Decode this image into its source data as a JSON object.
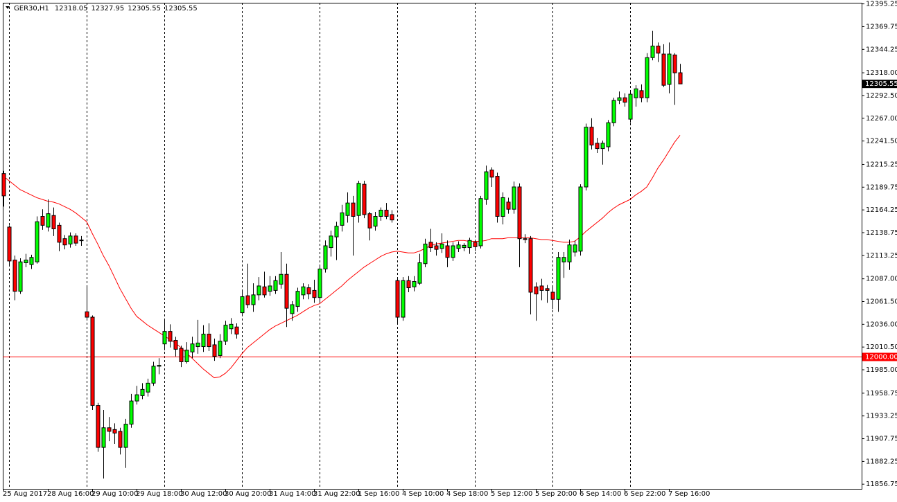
{
  "chart_data": {
    "type": "candlestick",
    "header": {
      "symbol": "GER30,H1",
      "values": [
        12318.05,
        12327.95,
        12305.55,
        12305.55
      ]
    },
    "categories": [
      "25 Aug 2017",
      null,
      null,
      null,
      null,
      null,
      null,
      null,
      "28 Aug 16:00",
      null,
      null,
      null,
      null,
      null,
      null,
      null,
      "29 Aug 10:00",
      null,
      null,
      null,
      null,
      null,
      null,
      null,
      "29 Aug 18:00",
      null,
      null,
      null,
      null,
      null,
      null,
      null,
      "30 Aug 12:00",
      null,
      null,
      null,
      null,
      null,
      null,
      null,
      "30 Aug 20:00",
      null,
      null,
      null,
      null,
      null,
      null,
      null,
      "31 Aug 14:00",
      null,
      null,
      null,
      null,
      null,
      null,
      null,
      "31 Aug 22:00",
      null,
      null,
      null,
      null,
      null,
      null,
      null,
      "1 Sep 16:00",
      null,
      null,
      null,
      null,
      null,
      null,
      null,
      "4 Sep 10:00",
      null,
      null,
      null,
      null,
      null,
      null,
      null,
      "4 Sep 18:00",
      null,
      null,
      null,
      null,
      null,
      null,
      null,
      "5 Sep 12:00",
      null,
      null,
      null,
      null,
      null,
      null,
      null,
      "5 Sep 20:00",
      null,
      null,
      null,
      null,
      null,
      null,
      null,
      "6 Sep 14:00",
      null,
      null,
      null,
      null,
      null,
      null,
      null,
      "6 Sep 22:00",
      null,
      null,
      null,
      null,
      null,
      null,
      null,
      "7 Sep 16:00",
      null,
      null
    ],
    "open": [
      12205,
      12145,
      12108,
      12073,
      12105,
      12103,
      12106,
      12157,
      12145,
      12158,
      12147,
      12132,
      12126,
      12135,
      12130,
      12050,
      12044,
      11945,
      11898,
      11920,
      11918,
      11916,
      11898,
      11924,
      11950,
      11956,
      11960,
      11970,
      11989,
      12014,
      12028,
      12018,
      12009,
      11994,
      12005,
      12011,
      12011,
      12025,
      12013,
      12001,
      12017,
      12031,
      12033,
      12049,
      12068,
      12058,
      12069,
      12078,
      12073,
      12074,
      12081,
      12092,
      12048,
      12056,
      12069,
      12077,
      12074,
      12066,
      12098,
      12122,
      12134,
      12147,
      12158,
      12172,
      12158,
      12193,
      12160,
      12146,
      12157,
      12164,
      12159,
      12085,
      12044,
      12085,
      12078,
      12082,
      12104,
      12128,
      12124,
      12121,
      12124,
      12111,
      12121,
      12122,
      12122,
      12128,
      12124,
      12176,
      12209,
      12202,
      12157,
      12173,
      12165,
      12190,
      12132,
      12132,
      12078,
      12079,
      12076,
      12072,
      12064,
      12106,
      12106,
      12117,
      12118,
      12190,
      12257,
      12239,
      12233,
      12235,
      12262,
      12287,
      12290,
      12266,
      12290,
      12298,
      12290,
      12335,
      12348,
      12339,
      12305,
      12338,
      12318.05
    ],
    "high": [
      12208,
      12147,
      12113,
      12110,
      12115,
      12114,
      12157,
      12165,
      12176,
      12167,
      12150,
      12136,
      12139,
      12138,
      12135,
      12079,
      12046,
      11948,
      11940,
      11932,
      11925,
      11920,
      11930,
      11958,
      11967,
      11970,
      11975,
      11994,
      11998,
      12041,
      12036,
      12022,
      12012,
      12016,
      12022,
      12041,
      12035,
      12037,
      12020,
      12025,
      12040,
      12043,
      12037,
      12073,
      12104,
      12082,
      12089,
      12095,
      12090,
      12090,
      12117,
      12104,
      12062,
      12077,
      12082,
      12081,
      12086,
      12101,
      12130,
      12141,
      12151,
      12170,
      12184,
      12180,
      12197,
      12197,
      12162,
      12162,
      12167,
      12172,
      12164,
      12088,
      12089,
      12090,
      12090,
      12115,
      12132,
      12143,
      12128,
      12138,
      12130,
      12128,
      12129,
      12127,
      12133,
      12131,
      12180,
      12214,
      12212,
      12206,
      12184,
      12178,
      12196,
      12194,
      12137,
      12135,
      12083,
      12087,
      12080,
      12078,
      12117,
      12117,
      12131,
      12130,
      12193,
      12261,
      12267,
      12245,
      12242,
      12265,
      12290,
      12297,
      12295,
      12298,
      12304,
      12305,
      12340,
      12365,
      12352,
      12350,
      12352,
      12340,
      12327.95
    ],
    "low": [
      12168,
      12101,
      12063,
      12070,
      12100,
      12098,
      12104,
      12142,
      12140,
      12135,
      12118,
      12120,
      12122,
      12124,
      12124,
      12042,
      11940,
      11893,
      11863,
      11905,
      11902,
      11890,
      11875,
      11920,
      11946,
      11952,
      11955,
      11967,
      11980,
      12007,
      12010,
      12000,
      11988,
      11992,
      11998,
      12003,
      12005,
      12006,
      11995,
      11998,
      12013,
      12025,
      12020,
      12046,
      12054,
      12050,
      12063,
      12066,
      12068,
      12070,
      12076,
      12033,
      12040,
      12050,
      12064,
      12064,
      12060,
      12060,
      12094,
      12112,
      12108,
      12140,
      12150,
      12113,
      12150,
      12155,
      12130,
      12141,
      12152,
      12154,
      12150,
      12036,
      12040,
      12072,
      12073,
      12080,
      12100,
      12117,
      12113,
      12116,
      12100,
      12107,
      12117,
      12118,
      12115,
      12118,
      12121,
      12170,
      12190,
      12150,
      12148,
      12160,
      12160,
      12100,
      12127,
      12047,
      12040,
      12063,
      12060,
      12053,
      12050,
      12088,
      12097,
      12112,
      12113,
      12186,
      12232,
      12228,
      12215,
      12230,
      12258,
      12283,
      12280,
      12262,
      12280,
      12285,
      12285,
      12332,
      12330,
      12302,
      12295,
      12282,
      12305.55
    ],
    "close": [
      12180,
      12107,
      12073,
      12106,
      12108,
      12111,
      12151,
      12147,
      12160,
      12143,
      12128,
      12125,
      12135,
      12127,
      12130.5,
      12044,
      11945,
      11898,
      11920,
      11916,
      11914,
      11898,
      11924,
      11950,
      11957,
      11963,
      11970,
      11989,
      11990,
      12028,
      12017,
      12008,
      11994,
      12007,
      12014,
      12015,
      12025,
      12011,
      12000,
      12017,
      12035,
      12036,
      12025,
      12067,
      12058,
      12069,
      12079,
      12069,
      12079,
      12085,
      12092,
      12054,
      12058,
      12073,
      12078,
      12070,
      12066,
      12098,
      12124,
      12135,
      12146,
      12161,
      12172,
      12157,
      12194,
      12159,
      12144,
      12157,
      12164,
      12157,
      12153,
      12044,
      12085,
      12077,
      12084,
      12105,
      12126,
      12122,
      12120,
      12126,
      12111,
      12124,
      12125,
      12124.5,
      12130,
      12123,
      12177,
      12207,
      12201,
      12157,
      12178,
      12165,
      12190,
      12132,
      12131,
      12072,
      12070,
      12074,
      12074,
      12064,
      12111,
      12111,
      12125,
      12125,
      12190,
      12257,
      12237,
      12233,
      12239,
      12262,
      12287,
      12290,
      12285,
      12294,
      12300,
      12290,
      12335,
      12348,
      12340,
      12304,
      12339,
      12318,
      12305.55
    ],
    "up_color": "#00ff00",
    "down_color": "#ff0000",
    "moving_average": {
      "color": "#ff0000",
      "values": [
        12202,
        12197,
        12192,
        12187,
        12184,
        12181,
        12178,
        12176,
        12174,
        12173,
        12171,
        12168,
        12165,
        12161,
        12156,
        12151,
        12138,
        12126,
        12113,
        12102,
        12089,
        12076,
        12065,
        12054,
        12045,
        12040,
        12035,
        12031,
        12027,
        12023,
        12019,
        12015,
        12010,
        12004,
        11998,
        11992,
        11986,
        11981,
        11976,
        11977,
        11981,
        11987,
        11995,
        12003,
        12010,
        12015,
        12020,
        12025,
        12030,
        12034,
        12037,
        12040,
        12043,
        12046,
        12050,
        12054,
        12057,
        12059,
        12064,
        12069,
        12074,
        12079,
        12085,
        12090,
        12095,
        12100,
        12104,
        12108,
        12112,
        12115,
        12117,
        12118,
        12117,
        12116,
        12116,
        12118,
        12121,
        12124,
        12126,
        12127,
        12128,
        12129,
        12130,
        12130,
        12129,
        12129,
        12129,
        12130,
        12132,
        12132,
        12132,
        12133,
        12133,
        12133,
        12133,
        12133,
        12132,
        12131,
        12131,
        12130,
        12129,
        12128,
        12128,
        12129,
        12134,
        12140,
        12145,
        12150,
        12155,
        12161,
        12166,
        12170,
        12173,
        12176,
        12181,
        12185,
        12190,
        12200,
        12211,
        12220,
        12230,
        12240,
        12248
      ]
    },
    "hline": {
      "value": 12000,
      "label": "12000.00",
      "color": "#ff0000"
    },
    "last_price": {
      "value": 12305.55,
      "label": "12305.55"
    },
    "ylim": [
      11851.5,
      12396.5
    ],
    "yticks": [
      12395.25,
      12369.75,
      12344.25,
      {
        "value": 12318,
        "label": "12318.00"
      },
      {
        "value": 12292.5,
        "label": "12292.50"
      },
      {
        "value": 12267,
        "label": "12267.00"
      },
      {
        "value": 12241.5,
        "label": "12241.50"
      },
      12215.25,
      12189.75,
      12164.25,
      12138.75,
      12113.25,
      {
        "value": 12087,
        "label": "12087.00"
      },
      {
        "value": 12061.5,
        "label": "12061.50"
      },
      {
        "value": 12036,
        "label": "12036.00"
      },
      {
        "value": 12010.5,
        "label": "12010.50"
      },
      {
        "value": 11985,
        "label": "11985.00"
      },
      11958.75,
      11933.25,
      11907.75,
      11882.25,
      11856.75
    ]
  }
}
